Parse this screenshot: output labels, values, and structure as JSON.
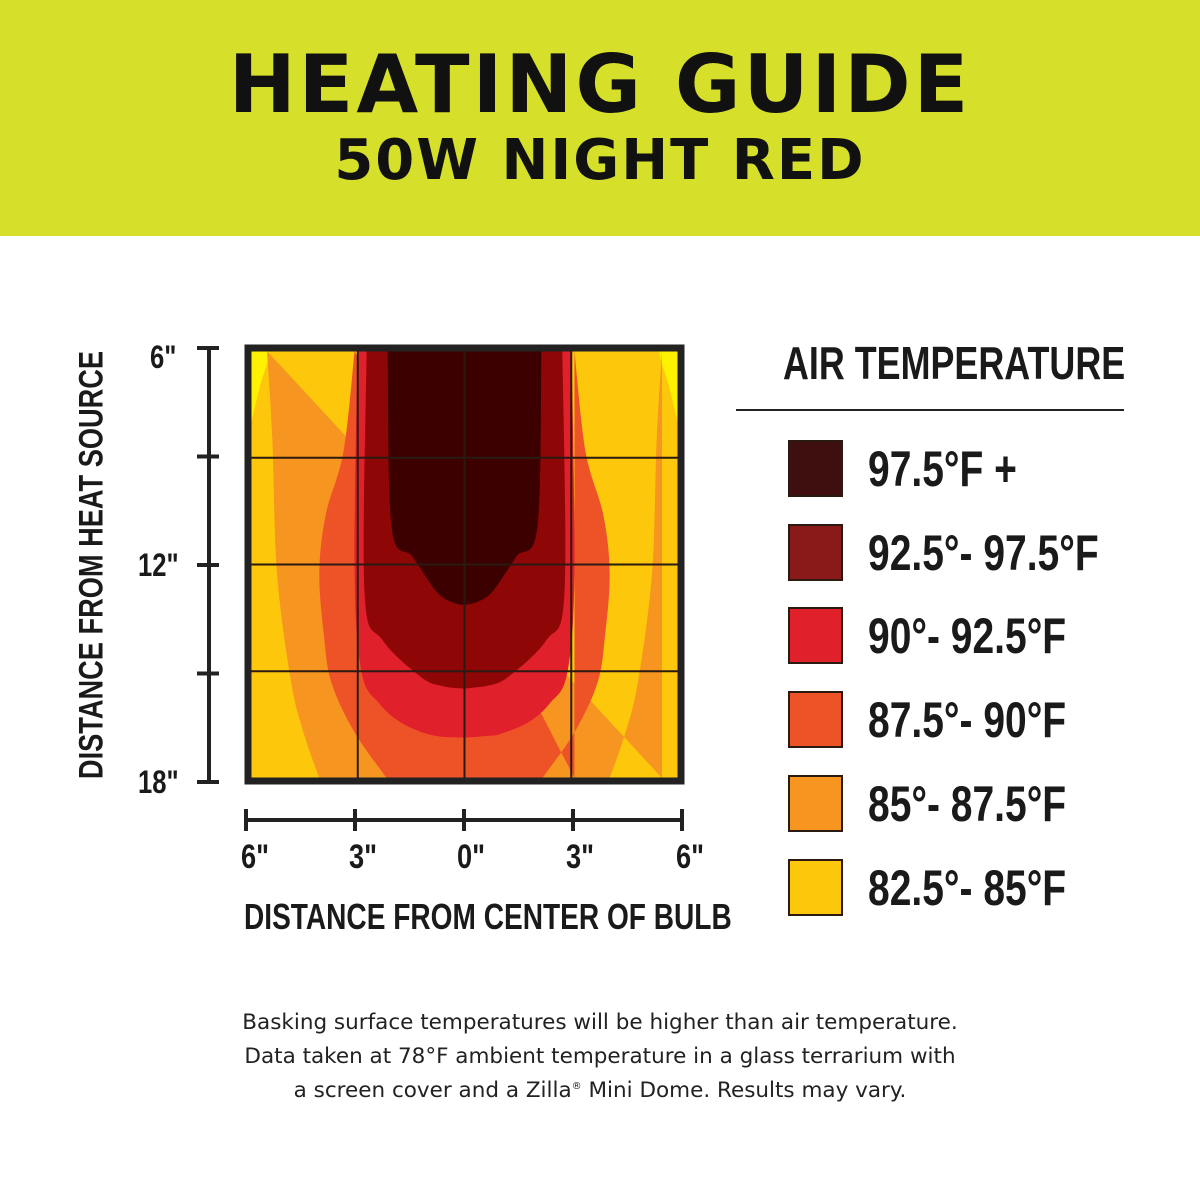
{
  "header": {
    "title": "HEATING GUIDE",
    "subtitle": "50W NIGHT RED",
    "background": "#d6e02a"
  },
  "chart_data": {
    "type": "heatmap",
    "subtype": "filled contour",
    "xlabel": "DISTANCE FROM CENTER OF BULB",
    "ylabel": "DISTANCE FROM HEAT SOURCE",
    "x_ticks": [
      "6\"",
      "3\"",
      "0\"",
      "3\"",
      "6\""
    ],
    "x_tick_values": [
      -6,
      -3,
      0,
      3,
      6
    ],
    "y_ticks": [
      "6\"",
      "12\"",
      "18\""
    ],
    "y_tick_values": [
      6,
      12,
      18
    ],
    "xlim": [
      -6,
      6
    ],
    "ylim": [
      6,
      18
    ],
    "y_inverted": true,
    "grid": true,
    "grid_x": [
      -3,
      0,
      3
    ],
    "grid_y": [
      9,
      12,
      15
    ],
    "legend_title": "AIR TEMPERATURE",
    "legend_placement": "right",
    "bins": [
      {
        "label": "97.5°F +",
        "color": "#3f0f10"
      },
      {
        "label": "92.5°- 97.5°F",
        "color": "#8a1a1a"
      },
      {
        "label": "90°- 92.5°F",
        "color": "#e0202a"
      },
      {
        "label": "87.5°- 90°F",
        "color": "#ee5328"
      },
      {
        "label": "85°- 87.5°F",
        "color": "#f6951f"
      },
      {
        "label": "82.5°- 85°F",
        "color": "#fdc80c"
      }
    ],
    "plot_colors": {
      "below_82_5": "#fff200",
      "82_5_85": "#fdc80c",
      "85_87_5": "#f6951f",
      "87_5_90": "#ee5328",
      "90_92_5": "#e0202a",
      "92_5_97_5": "#8e0606",
      "97_5_plus": "#3d0000"
    },
    "contours_left_half": [
      {
        "band": "below 82.5°F",
        "color": "#fff200",
        "points": [
          [
            -6,
            6
          ],
          [
            -5.49,
            6
          ],
          [
            -5.75,
            7.0
          ],
          [
            -6,
            8.03
          ]
        ]
      },
      {
        "band": "85°- 87.5°F",
        "color": "#f6951f",
        "points": [
          [
            -5.55,
            6
          ],
          [
            -5.4,
            8.5
          ],
          [
            -5.27,
            12.24
          ],
          [
            -4.87,
            15.32
          ],
          [
            -4.5,
            16.8
          ],
          [
            -4.08,
            18
          ]
        ]
      },
      {
        "band": "87.5°- 90°F",
        "color": "#ee5328",
        "points": [
          [
            -3.09,
            6
          ],
          [
            -3.4,
            8.82
          ],
          [
            -3.9,
            10.6
          ],
          [
            -4.08,
            12.24
          ],
          [
            -3.95,
            14.0
          ],
          [
            -3.74,
            15.32
          ],
          [
            -3.1,
            16.7
          ],
          [
            -2.19,
            18
          ]
        ]
      },
      {
        "band": "90°- 92.5°F",
        "color": "#e0202a",
        "points": [
          [
            -3.01,
            6
          ],
          [
            -3.09,
            12.24
          ],
          [
            -2.89,
            15.04
          ],
          [
            -2.4,
            15.9
          ],
          [
            -1.77,
            16.45
          ],
          [
            -0.9,
            16.8
          ],
          [
            0,
            16.87
          ]
        ]
      },
      {
        "band": "92.5°- 97.5°F",
        "color": "#8e0606",
        "points": [
          [
            -2.75,
            6
          ],
          [
            -2.81,
            12.78
          ],
          [
            -2.3,
            14.13
          ],
          [
            -1.2,
            15.18
          ],
          [
            -0.6,
            15.42
          ],
          [
            0,
            15.49
          ]
        ]
      },
      {
        "band": "97.5°F +",
        "color": "#3d0000",
        "points": [
          [
            -2.16,
            6
          ],
          [
            -2.05,
            10.94
          ],
          [
            -1.45,
            11.79
          ],
          [
            -0.77,
            12.78
          ],
          [
            -0.3,
            13.08
          ],
          [
            0,
            13.14
          ]
        ]
      }
    ]
  },
  "footnote": {
    "line1": "Basking surface temperatures will be higher than air temperature.",
    "line2": "Data taken at 78°F ambient temperature in a glass terrarium with",
    "line3a": "a screen cover and a Zilla",
    "line3_reg": "®",
    "line3b": " Mini Dome. Results may vary."
  }
}
